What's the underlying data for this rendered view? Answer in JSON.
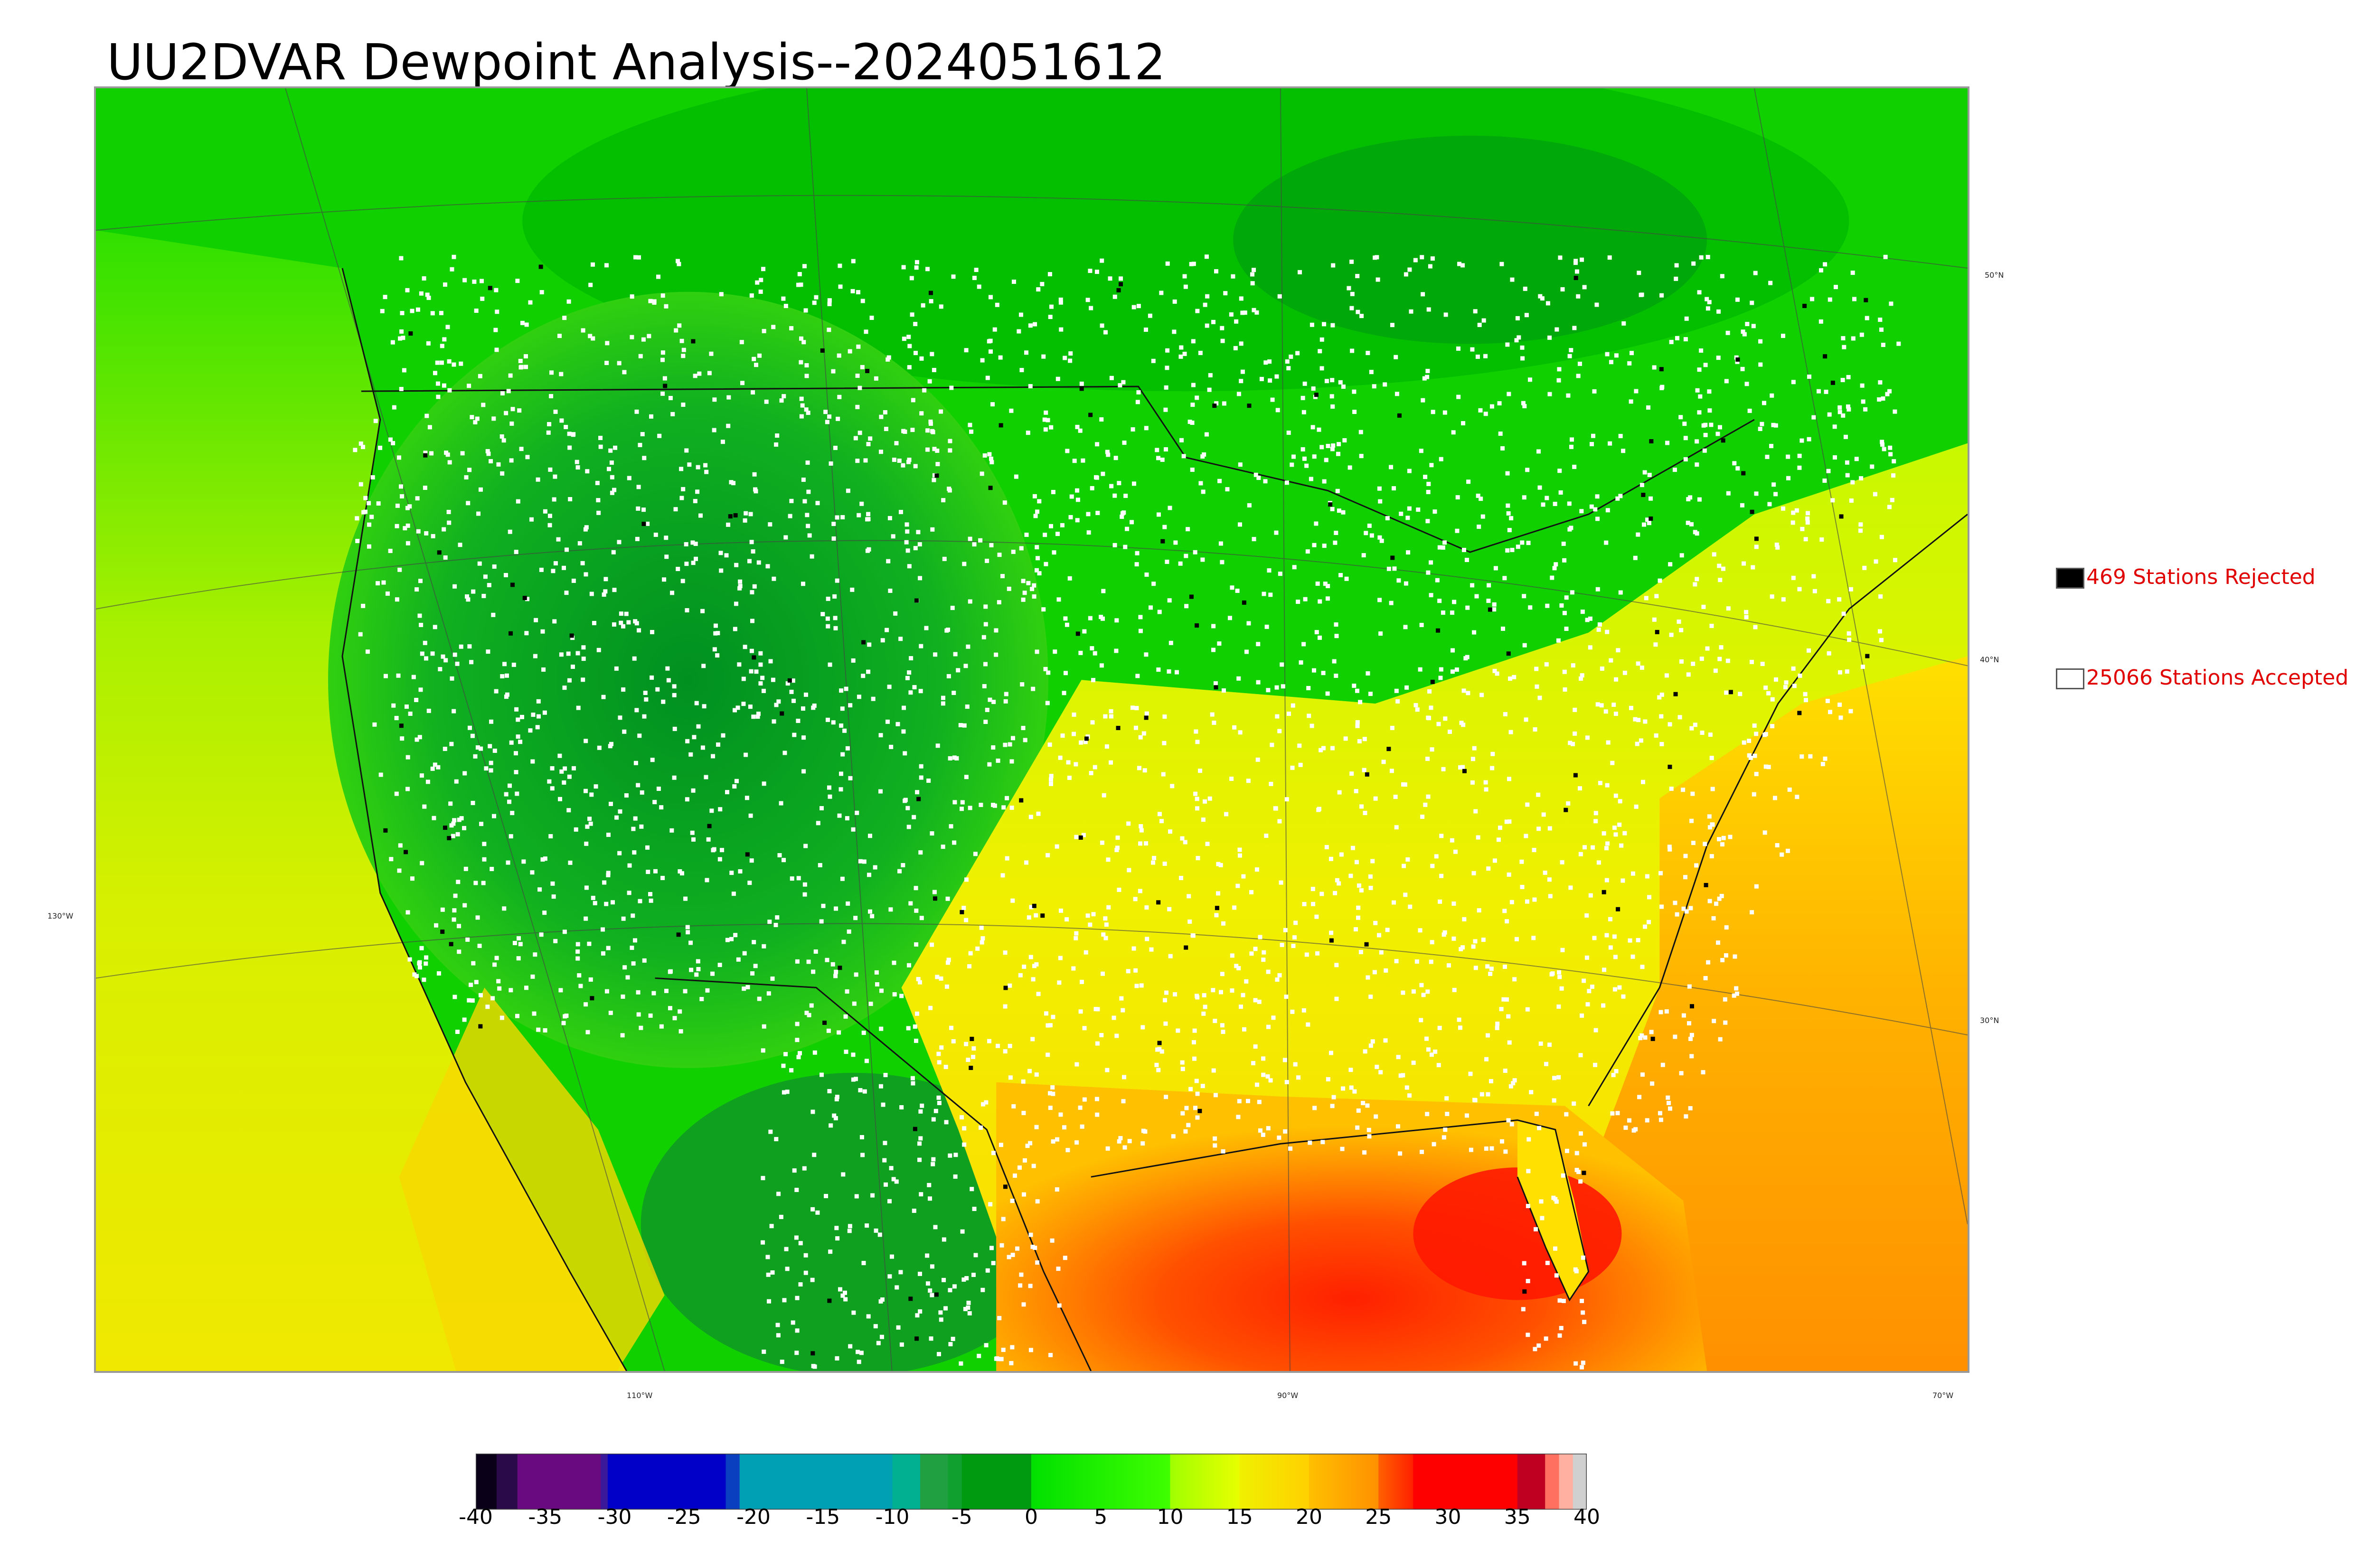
{
  "title": "UU2DVAR Dewpoint Analysis--2024051612",
  "legend": {
    "rejected": {
      "label": "469 Stations Rejected",
      "swatch_color": "#000000"
    },
    "accepted": {
      "label": "25066 Stations Accepted",
      "swatch_color": "#ffffff"
    },
    "text_color": "#e00000"
  },
  "graticule": {
    "lat_labels": [
      "50°N",
      "40°N",
      "30°N"
    ],
    "lon_labels": [
      "130°W",
      "110°W",
      "90°W",
      "70°W"
    ]
  },
  "colorbar": {
    "min": -40,
    "max": 40,
    "ticks": [
      "-40",
      "-35",
      "-30",
      "-25",
      "-20",
      "-15",
      "-10",
      "-5",
      "0",
      "5",
      "10",
      "15",
      "20",
      "25",
      "30",
      "35",
      "40"
    ],
    "segments": [
      {
        "from": -40,
        "to": -38.5,
        "color": "#0a0018"
      },
      {
        "from": -38.5,
        "to": -37,
        "color": "#2a0a48"
      },
      {
        "from": -37,
        "to": -31,
        "color": "#6a0a80"
      },
      {
        "from": -31,
        "to": -30.5,
        "color": "#3a1a9a"
      },
      {
        "from": -30.5,
        "to": -22,
        "color": "#0000c8"
      },
      {
        "from": -22,
        "to": -21,
        "color": "#0a40c0"
      },
      {
        "from": -21,
        "to": -10,
        "color": "#00a0b4"
      },
      {
        "from": -10,
        "to": -8,
        "color": "#00b090"
      },
      {
        "from": -8,
        "to": -6,
        "color": "#20a040"
      },
      {
        "from": -6,
        "to": -5,
        "color": "#10a030"
      },
      {
        "from": -5,
        "to": 0,
        "color": "#009a10"
      },
      {
        "from": 0,
        "to": 10,
        "color": "#00e000",
        "to_color": "#40ff00"
      },
      {
        "from": 10,
        "to": 15,
        "color": "#a0ff00",
        "to_color": "#e8ff00"
      },
      {
        "from": 15,
        "to": 20,
        "color": "#f0f000",
        "to_color": "#ffd000"
      },
      {
        "from": 20,
        "to": 25,
        "color": "#ffc000",
        "to_color": "#ff9000"
      },
      {
        "from": 25,
        "to": 27.5,
        "color": "#ff6000",
        "to_color": "#ff2000"
      },
      {
        "from": 27.5,
        "to": 35,
        "color": "#ff0000"
      },
      {
        "from": 35,
        "to": 37,
        "color": "#c00020"
      },
      {
        "from": 37,
        "to": 38,
        "color": "#ff7060"
      },
      {
        "from": 38,
        "to": 39,
        "color": "#ffb0a0"
      },
      {
        "from": 39,
        "to": 40,
        "color": "#d0d0d0"
      }
    ]
  }
}
